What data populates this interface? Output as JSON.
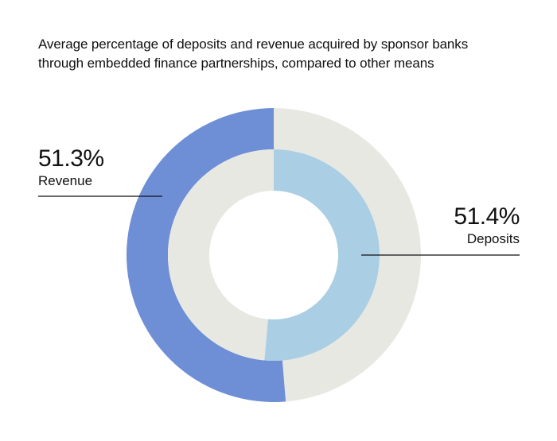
{
  "title_lines": [
    "Average percentage of deposits and revenue acquired by sponsor banks",
    "through embedded finance partnerships, compared to other means"
  ],
  "chart_data": {
    "type": "pie",
    "title": "Average percentage of deposits and revenue acquired by sponsor banks through embedded finance partnerships, compared to other means",
    "rings": [
      {
        "ring": "outer",
        "name": "Revenue",
        "value": 51.3,
        "value_label": "51.3%",
        "color": "#6e8fd6",
        "rest_color": "#e8e8e3",
        "direction": "counter-clockwise"
      },
      {
        "ring": "inner",
        "name": "Deposits",
        "value": 51.4,
        "value_label": "51.4%",
        "color": "#aacee3",
        "rest_color": "#e8e8e3",
        "direction": "clockwise"
      }
    ]
  },
  "colors": {
    "revenue": "#6e8fd6",
    "deposits": "#aacee3",
    "remainder": "#e8e8e3",
    "text": "#111111"
  }
}
